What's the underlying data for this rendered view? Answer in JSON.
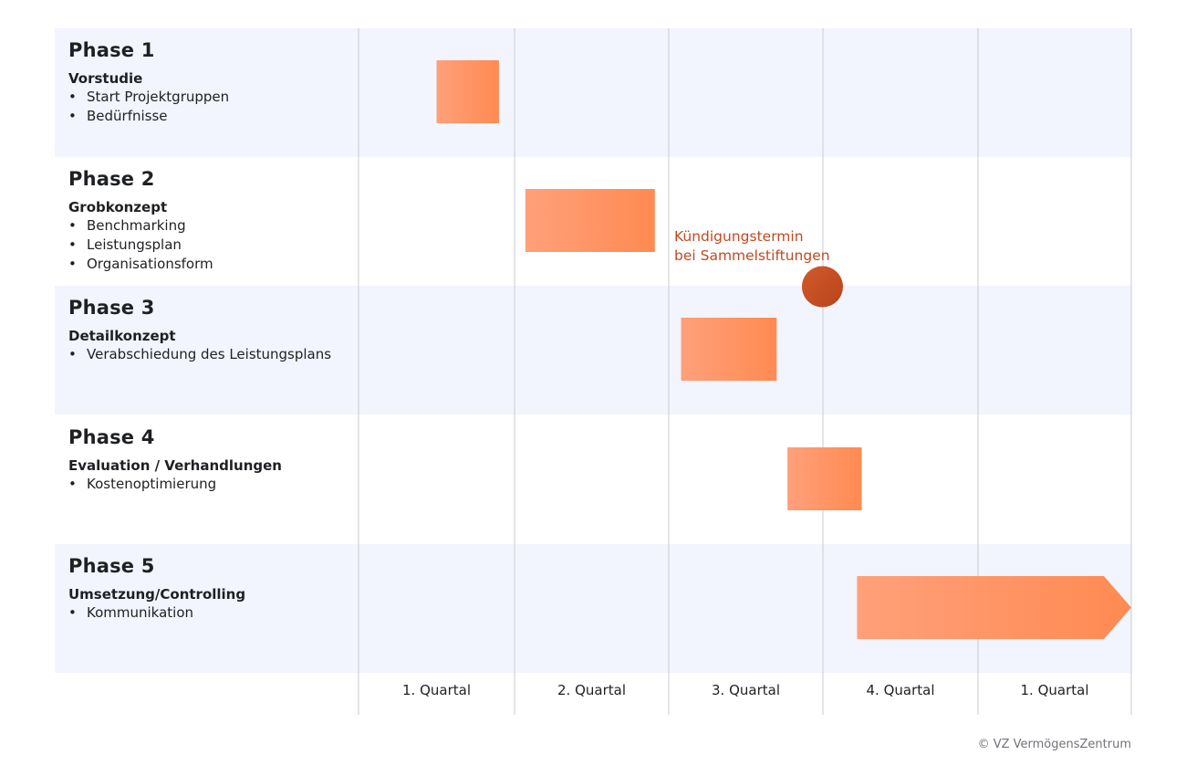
{
  "phases": [
    {
      "title": "Phase 1",
      "subtitle": "Vorstudie",
      "bullets": [
        "Start Projektgruppen",
        "Bedürfnisse"
      ]
    },
    {
      "title": "Phase 2",
      "subtitle": "Grobkonzept",
      "bullets": [
        "Benchmarking",
        "Leistungsplan",
        "Organisationsform"
      ]
    },
    {
      "title": "Phase 3",
      "subtitle": "Detailkonzept",
      "bullets": [
        "Verabschiedung des Leistungsplans"
      ]
    },
    {
      "title": "Phase 4",
      "subtitle": "Evaluation / Verhandlungen",
      "bullets": [
        "Kostenoptimierung"
      ]
    },
    {
      "title": "Phase 5",
      "subtitle": "Umsetzung/Controlling",
      "bullets": [
        "Kommunikation"
      ]
    }
  ],
  "quarters": [
    "1. Quartal",
    "2. Quartal",
    "3. Quartal",
    "4. Quartal",
    "1. Quartal"
  ],
  "milestone": {
    "line1": "Kündigungstermin",
    "line2": "bei Sammelstiftungen",
    "at_quarter": 3.0
  },
  "bars": [
    {
      "phase": "Phase 1",
      "start_quarter": 0.5,
      "end_quarter": 0.9
    },
    {
      "phase": "Phase 2",
      "start_quarter": 1.07,
      "end_quarter": 1.91
    },
    {
      "phase": "Phase 3",
      "start_quarter": 2.08,
      "end_quarter": 2.7
    },
    {
      "phase": "Phase 4",
      "start_quarter": 2.77,
      "end_quarter": 3.25
    },
    {
      "phase": "Phase 5",
      "start_quarter": 3.22,
      "end_quarter": 5.0,
      "arrow": true
    }
  ],
  "colors": {
    "band": "#f2f5fd",
    "grid": "#c9cbd1",
    "bar_light": "#ffa07a",
    "bar_dark": "#ff8a52",
    "milestone_light": "#d25a2c",
    "milestone_dark": "#b8441a",
    "milestone_text": "#bf4a21"
  },
  "copyright": "© VZ VermögensZentrum"
}
